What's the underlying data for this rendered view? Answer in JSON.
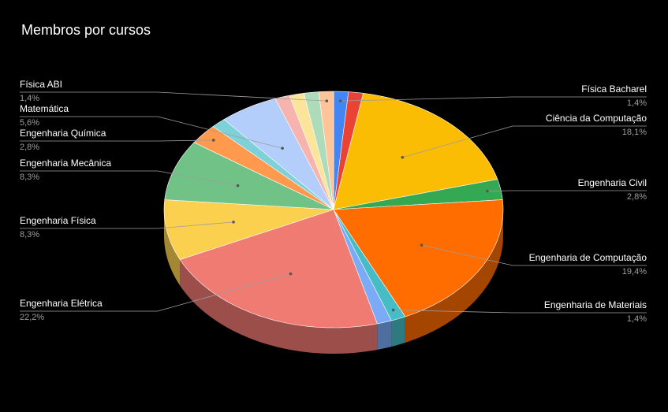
{
  "chart_data": {
    "type": "pie",
    "title": "Membros por cursos",
    "categories": [
      "Física Bacharel",
      null,
      "Ciência da Computação",
      "Engenharia Civil",
      "Engenharia de Computação",
      "Engenharia de Materiais",
      null,
      "Engenharia Elétrica",
      "Engenharia Física",
      "Engenharia Mecânica",
      "Engenharia Química",
      null,
      "Matemática",
      null,
      null,
      null,
      "Física ABI"
    ],
    "values": [
      1.4,
      1.4,
      18.1,
      2.8,
      19.4,
      1.4,
      1.4,
      22.2,
      8.3,
      8.3,
      2.8,
      1.4,
      5.6,
      1.4,
      1.4,
      1.4,
      1.4
    ],
    "value_labels": [
      "1,4%",
      null,
      "18,1%",
      "2,8%",
      "19,4%",
      "1,4%",
      null,
      "22,2%",
      "8,3%",
      "8,3%",
      "2,8%",
      null,
      "5,6%",
      null,
      null,
      null,
      "1,4%"
    ],
    "colors": [
      "#4285f4",
      "#ea4335",
      "#fbbc04",
      "#34a853",
      "#ff6d01",
      "#46bdc6",
      "#7baaf7",
      "#f07b72",
      "#fcd04f",
      "#71c287",
      "#ff994d",
      "#7ed1d7",
      "#b3cefb",
      "#f7b4ae",
      "#fde49b",
      "#aedcba",
      "#ffc599"
    ],
    "3d": true
  }
}
